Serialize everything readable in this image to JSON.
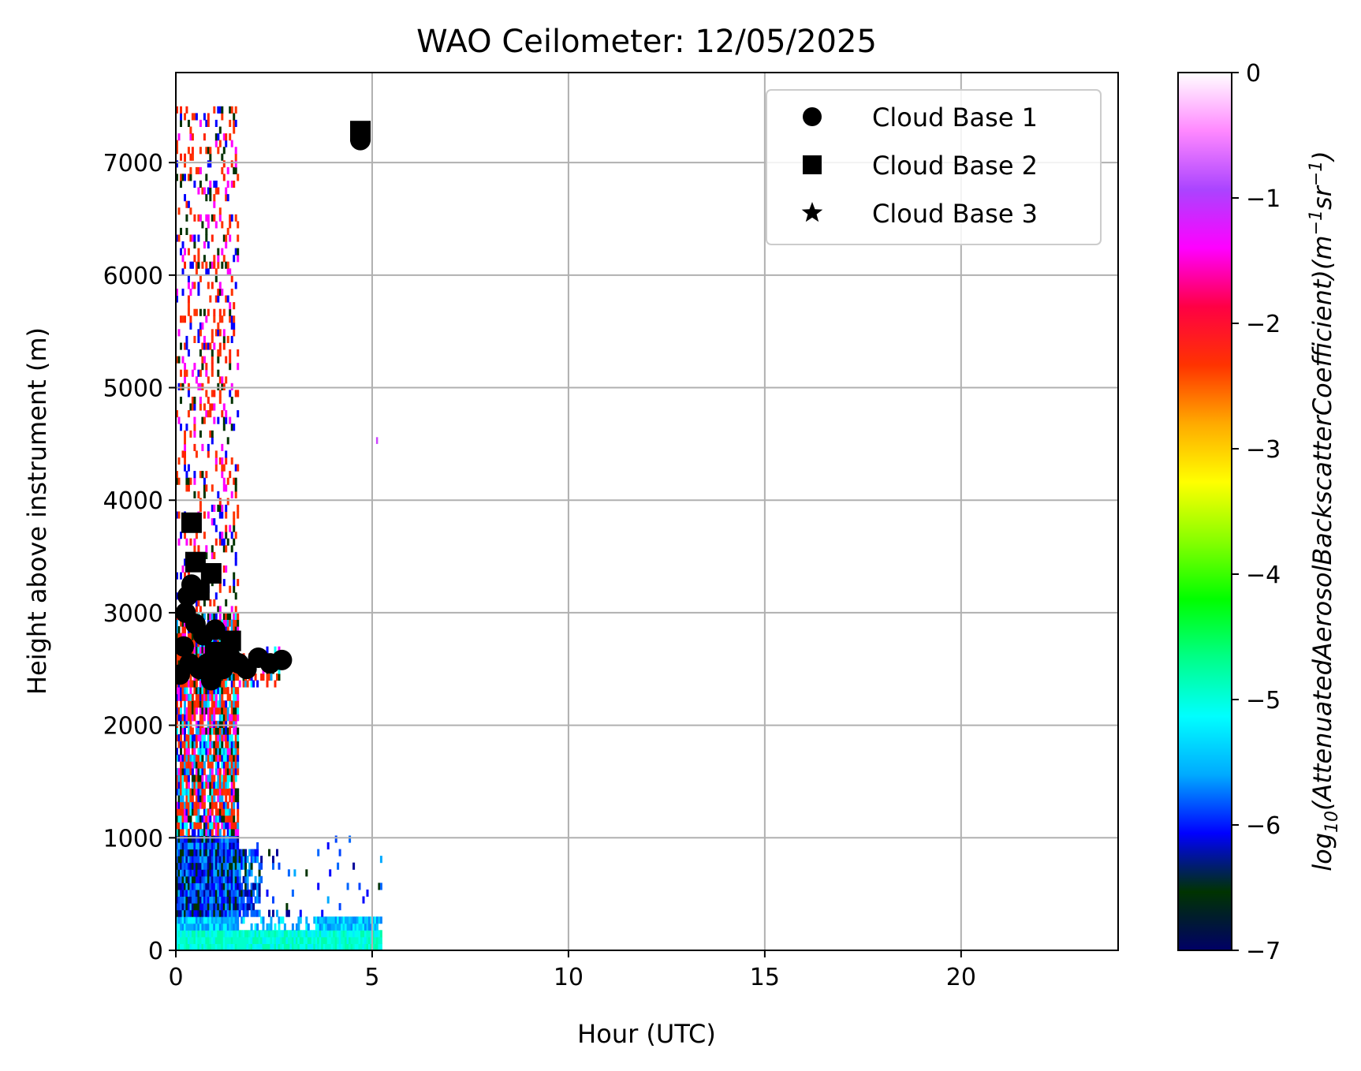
{
  "chart_data": {
    "type": "heatmap",
    "title": "WAO Ceilometer: 12/05/2025",
    "xlabel": "Hour (UTC)",
    "ylabel": "Height above instrument (m)",
    "xlim": [
      0,
      24
    ],
    "ylim": [
      0,
      7800
    ],
    "xticks": [
      0,
      5,
      10,
      15,
      20
    ],
    "xtick_labels": [
      "0",
      "5",
      "10",
      "15",
      "20"
    ],
    "yticks": [
      0,
      1000,
      2000,
      3000,
      4000,
      5000,
      6000,
      7000
    ],
    "ytick_labels": [
      "0",
      "1000",
      "2000",
      "3000",
      "4000",
      "5000",
      "6000",
      "7000"
    ],
    "grid": true,
    "legend_position": "top-right",
    "colorbar": {
      "label_main": "log",
      "label_sub": "10",
      "label_rest": "(AttenuatedAerosolBackscatterCoefficient)(m",
      "label_sup1": "−1",
      "label_mid": "sr",
      "label_sup2": "−1",
      "label_end": ")",
      "range": [
        -7,
        0
      ],
      "ticks": [
        0,
        -1,
        -2,
        -3,
        -4,
        -5,
        -6,
        -7
      ],
      "tick_labels": [
        "0",
        "−1",
        "−2",
        "−3",
        "−4",
        "−5",
        "−6",
        "−7"
      ],
      "colormap": [
        "#000066",
        "#003300",
        "#0000ff",
        "#00aaff",
        "#00ffff",
        "#00ff88",
        "#00ff00",
        "#88ff00",
        "#ffff00",
        "#ffaa00",
        "#ff3300",
        "#ff0044",
        "#ff00ff",
        "#aa44ff",
        "#ff88ff",
        "#ffffff"
      ]
    },
    "series": [
      {
        "name": "Cloud Base 1",
        "marker": "circle",
        "points": [
          {
            "x": 0.1,
            "y": 2450
          },
          {
            "x": 0.2,
            "y": 2700
          },
          {
            "x": 0.25,
            "y": 3000
          },
          {
            "x": 0.3,
            "y": 3150
          },
          {
            "x": 0.35,
            "y": 2550
          },
          {
            "x": 0.4,
            "y": 3250
          },
          {
            "x": 0.5,
            "y": 2900
          },
          {
            "x": 0.6,
            "y": 2500
          },
          {
            "x": 0.7,
            "y": 2800
          },
          {
            "x": 0.8,
            "y": 2550
          },
          {
            "x": 0.9,
            "y": 2400
          },
          {
            "x": 1.0,
            "y": 2850
          },
          {
            "x": 1.1,
            "y": 2600
          },
          {
            "x": 1.2,
            "y": 2500
          },
          {
            "x": 1.4,
            "y": 2600
          },
          {
            "x": 1.6,
            "y": 2550
          },
          {
            "x": 1.8,
            "y": 2500
          },
          {
            "x": 2.1,
            "y": 2600
          },
          {
            "x": 2.4,
            "y": 2550
          },
          {
            "x": 2.7,
            "y": 2580
          },
          {
            "x": 4.7,
            "y": 7200
          }
        ]
      },
      {
        "name": "Cloud Base 2",
        "marker": "square",
        "points": [
          {
            "x": 0.4,
            "y": 3800
          },
          {
            "x": 0.5,
            "y": 3450
          },
          {
            "x": 0.6,
            "y": 3200
          },
          {
            "x": 0.9,
            "y": 3350
          },
          {
            "x": 1.0,
            "y": 2650
          },
          {
            "x": 1.4,
            "y": 2750
          },
          {
            "x": 4.7,
            "y": 7280
          }
        ]
      },
      {
        "name": "Cloud Base 3",
        "marker": "star",
        "points": []
      }
    ]
  }
}
